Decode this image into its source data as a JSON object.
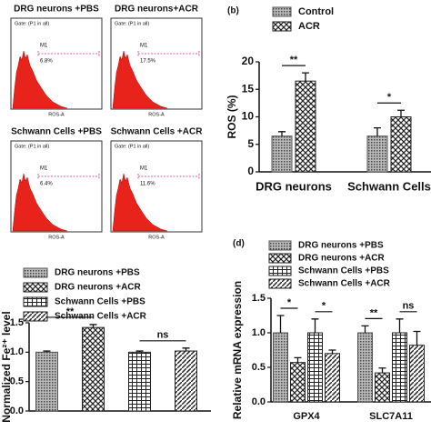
{
  "flow_panels": [
    {
      "title": "DRG neurons +PBS",
      "gate": "Gate: (P1 in all)",
      "marker": "M1",
      "percent": "6.8%",
      "x_label": "ROS-A"
    },
    {
      "title": "DRG neurons+ACR",
      "gate": "Gate: (P1 in all)",
      "marker": "M1",
      "percent": "17.5%",
      "x_label": "ROS-A"
    },
    {
      "title": "Schwann Cells +PBS",
      "gate": "Gate: (P1 in all)",
      "marker": "M1",
      "percent": "6.4%",
      "x_label": "ROS-A"
    },
    {
      "title": "Schwann Cells +ACR",
      "gate": "Gate: (P1 in all)",
      "marker": "M1",
      "percent": "11.6%",
      "x_label": "ROS-A"
    }
  ],
  "chart_data": [
    {
      "type": "bar",
      "panel_label": "(b)",
      "y_label": "ROS (%)",
      "categories": [
        "DRG neurons",
        "Schwann Cells"
      ],
      "series": [
        {
          "name": "Control",
          "color": "#555555",
          "pattern": "dots",
          "values": [
            6.5,
            6.5
          ],
          "errors": [
            0.8,
            1.5
          ]
        },
        {
          "name": "ACR",
          "color": "#222222",
          "pattern": "crosshatch",
          "values": [
            16.5,
            10
          ],
          "errors": [
            1.5,
            1.2
          ]
        }
      ],
      "annotations": [
        "**",
        "*"
      ],
      "ylim": [
        0,
        20
      ],
      "yticks": [
        0,
        5,
        10,
        15,
        20
      ]
    },
    {
      "type": "bar",
      "panel_label": "(c)",
      "y_label": "Normalized Fe²⁺ level",
      "categories": [
        null
      ],
      "series": [
        {
          "name": "DRG neurons +PBS",
          "color": "#555555",
          "pattern": "dots",
          "values": [
            1.0
          ],
          "errors": [
            0.02
          ]
        },
        {
          "name": "DRG neurons +ACR",
          "color": "#222222",
          "pattern": "crosshatch",
          "values": [
            1.42
          ],
          "errors": [
            0.05
          ]
        },
        {
          "name": "Schwann Cells +PBS",
          "color": "#222222",
          "pattern": "grid",
          "values": [
            1.0
          ],
          "errors": [
            0.02
          ]
        },
        {
          "name": "Schwann Cells +ACR",
          "color": "#222222",
          "pattern": "hatch",
          "values": [
            1.02
          ],
          "errors": [
            0.05
          ]
        }
      ],
      "annotations": [
        "**",
        "ns"
      ],
      "ylim": [
        0,
        1.5
      ],
      "yticks": [
        {
          "value": 0,
          "label": "0.0"
        },
        0.5,
        {
          "value": 1,
          "label": "1.0"
        },
        1.5
      ]
    },
    {
      "type": "bar",
      "panel_label": "(d)",
      "y_label": "Relative mRNA expression",
      "categories": [
        "GPX4",
        "SLC7A11"
      ],
      "series": [
        {
          "name": "DRG neurons +PBS",
          "color": "#555555",
          "pattern": "dots",
          "values": [
            1.0,
            1.0
          ],
          "errors": [
            0.25,
            0.1
          ]
        },
        {
          "name": "DRG neurons +ACR",
          "color": "#222222",
          "pattern": "crosshatch",
          "values": [
            0.57,
            0.42
          ],
          "errors": [
            0.07,
            0.07
          ]
        },
        {
          "name": "Schwann Cells +PBS",
          "color": "#222222",
          "pattern": "grid",
          "values": [
            1.0,
            1.0
          ],
          "errors": [
            0.2,
            0.2
          ]
        },
        {
          "name": "Schwann Cells +ACR",
          "color": "#222222",
          "pattern": "hatch",
          "values": [
            0.7,
            0.82
          ],
          "errors": [
            0.05,
            0.2
          ]
        }
      ],
      "annotations": [
        "*",
        "*",
        "**",
        "ns"
      ],
      "ylim": [
        0,
        1.5
      ],
      "yticks": [
        {
          "value": 0,
          "label": "0.0"
        },
        0.5,
        {
          "value": 1,
          "label": "1.0"
        },
        1.5
      ]
    }
  ]
}
